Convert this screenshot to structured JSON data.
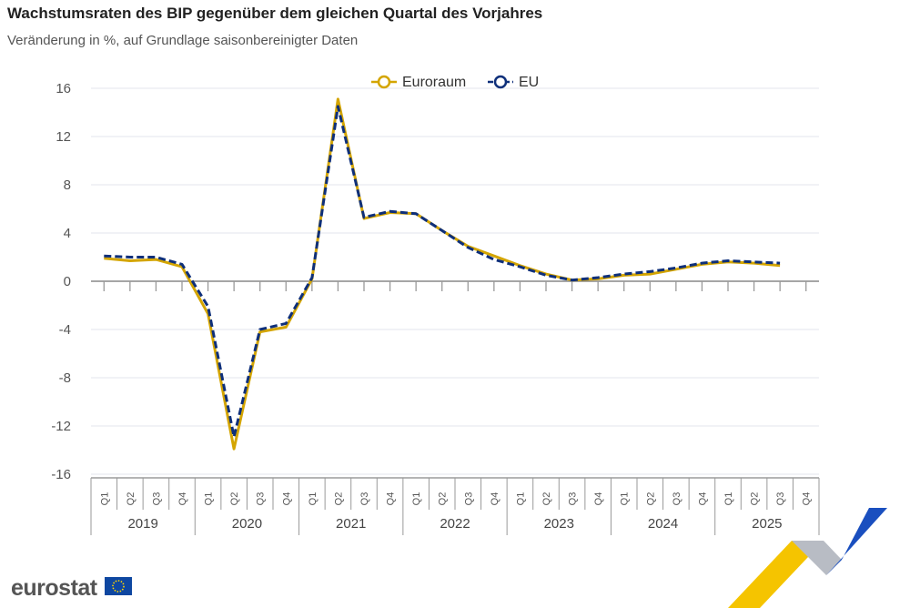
{
  "title": "Wachstumsraten des BIP gegenüber dem gleichen Quartal des Vorjahres",
  "subtitle": "Veränderung in %, auf Grundlage saisonbereinigter Daten",
  "logo": "eurostat",
  "chart_data": {
    "type": "line",
    "title": "Wachstumsraten des BIP gegenüber dem gleichen Quartal des Vorjahres",
    "subtitle": "Veränderung in %, auf Grundlage saisonbereinigter Daten",
    "years": [
      "2019",
      "2020",
      "2021",
      "2022",
      "2023",
      "2024",
      "2025"
    ],
    "quarters": [
      "Q1",
      "Q2",
      "Q3",
      "Q4"
    ],
    "ylim": [
      -16,
      16
    ],
    "yticks": [
      16,
      12,
      8,
      4,
      0,
      -4,
      -8,
      -12,
      -16
    ],
    "grid": true,
    "legend": "top-center",
    "series": [
      {
        "name": "Euroraum",
        "color": "#d4a500",
        "dash": false,
        "values": [
          1.9,
          1.7,
          1.8,
          1.2,
          -2.7,
          -13.9,
          -4.2,
          -3.8,
          0.2,
          15.1,
          5.2,
          5.7,
          5.6,
          4.2,
          2.9,
          2.1,
          1.3,
          0.6,
          0.1,
          0.2,
          0.5,
          0.6,
          1.0,
          1.4,
          1.6,
          1.5,
          1.3,
          null
        ]
      },
      {
        "name": "EU",
        "color": "#0e2f7a",
        "dash": true,
        "values": [
          2.1,
          2.0,
          2.0,
          1.4,
          -2.1,
          -12.9,
          -4.0,
          -3.5,
          0.3,
          14.5,
          5.3,
          5.8,
          5.6,
          4.2,
          2.8,
          1.8,
          1.2,
          0.5,
          0.1,
          0.3,
          0.6,
          0.8,
          1.1,
          1.5,
          1.7,
          1.6,
          1.5,
          null
        ]
      }
    ]
  }
}
